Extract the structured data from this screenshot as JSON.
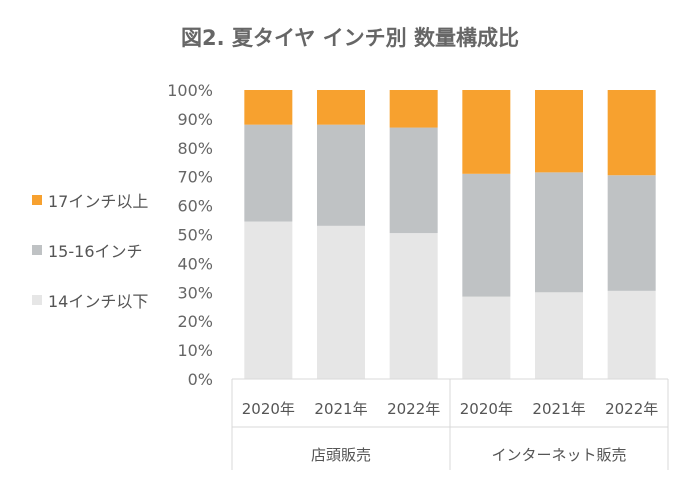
{
  "chart_data": {
    "type": "bar",
    "stacked": true,
    "percent": true,
    "title": "図2. 夏タイヤ インチ別 数量構成比",
    "categories": [
      "2020年",
      "2021年",
      "2022年",
      "2020年",
      "2021年",
      "2022年"
    ],
    "groups": [
      {
        "label": "店頭販売",
        "count": 3
      },
      {
        "label": "インターネット販売",
        "count": 3
      }
    ],
    "ylim": [
      0,
      100
    ],
    "yticks": [
      "0%",
      "10%",
      "20%",
      "30%",
      "40%",
      "50%",
      "60%",
      "70%",
      "80%",
      "90%",
      "100%"
    ],
    "grid": false,
    "legend_position": "left",
    "series": [
      {
        "name": "14インチ以下",
        "color": "#e6e6e6",
        "values": [
          54.5,
          53,
          50.5,
          28.5,
          30,
          30.5
        ]
      },
      {
        "name": "15-16インチ",
        "color": "#bfc2c4",
        "values": [
          33.5,
          35,
          36.5,
          42.5,
          41.5,
          40
        ]
      },
      {
        "name": "17インチ以上",
        "color": "#f7a12f",
        "values": [
          12,
          12,
          13,
          29,
          28.5,
          29.5
        ]
      }
    ],
    "legend_order": [
      2,
      1,
      0
    ]
  }
}
